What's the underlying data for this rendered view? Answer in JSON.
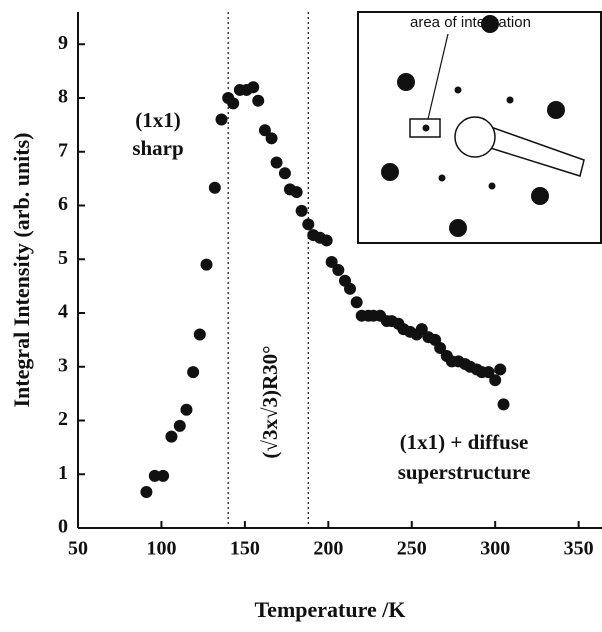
{
  "chart_data": {
    "type": "scatter",
    "xlabel": "Temperature /K",
    "ylabel": "Integral Intensity (arb. units)",
    "xlim": [
      50,
      364
    ],
    "ylim": [
      0,
      9.6
    ],
    "xticks": [
      50,
      100,
      150,
      200,
      250,
      300,
      350
    ],
    "yticks": [
      0,
      1,
      2,
      3,
      4,
      5,
      6,
      7,
      8,
      9
    ],
    "color": "#111111",
    "vlines": [
      140,
      188
    ],
    "annotations": [
      "(1x1)",
      "sharp",
      "(√3x√3)R30°",
      "(1x1) + diffuse",
      "superstructure"
    ],
    "inset_label": "area of integration",
    "x": [
      91,
      96,
      101,
      106,
      111,
      115,
      119,
      123,
      127,
      132,
      136,
      140,
      143,
      147,
      151,
      155,
      158,
      162,
      166,
      169,
      174,
      177,
      181,
      184,
      188,
      191,
      195,
      199,
      202,
      206,
      210,
      213,
      217,
      220,
      224,
      227,
      231,
      235,
      238,
      242,
      245,
      249,
      253,
      256,
      260,
      264,
      267,
      271,
      274,
      278,
      282,
      285,
      289,
      292,
      296,
      300,
      303,
      305
    ],
    "values": [
      0.67,
      0.97,
      0.97,
      1.7,
      1.9,
      2.2,
      2.9,
      3.6,
      4.9,
      6.33,
      7.6,
      8.0,
      7.9,
      8.15,
      8.15,
      8.2,
      7.95,
      7.4,
      7.25,
      6.8,
      6.6,
      6.3,
      6.25,
      5.9,
      5.65,
      5.45,
      5.4,
      5.35,
      4.95,
      4.8,
      4.6,
      4.45,
      4.2,
      3.95,
      3.95,
      3.95,
      3.95,
      3.85,
      3.85,
      3.8,
      3.7,
      3.65,
      3.6,
      3.7,
      3.55,
      3.5,
      3.35,
      3.2,
      3.1,
      3.1,
      3.05,
      3.0,
      2.95,
      2.9,
      2.9,
      2.75,
      2.95,
      2.3
    ]
  }
}
